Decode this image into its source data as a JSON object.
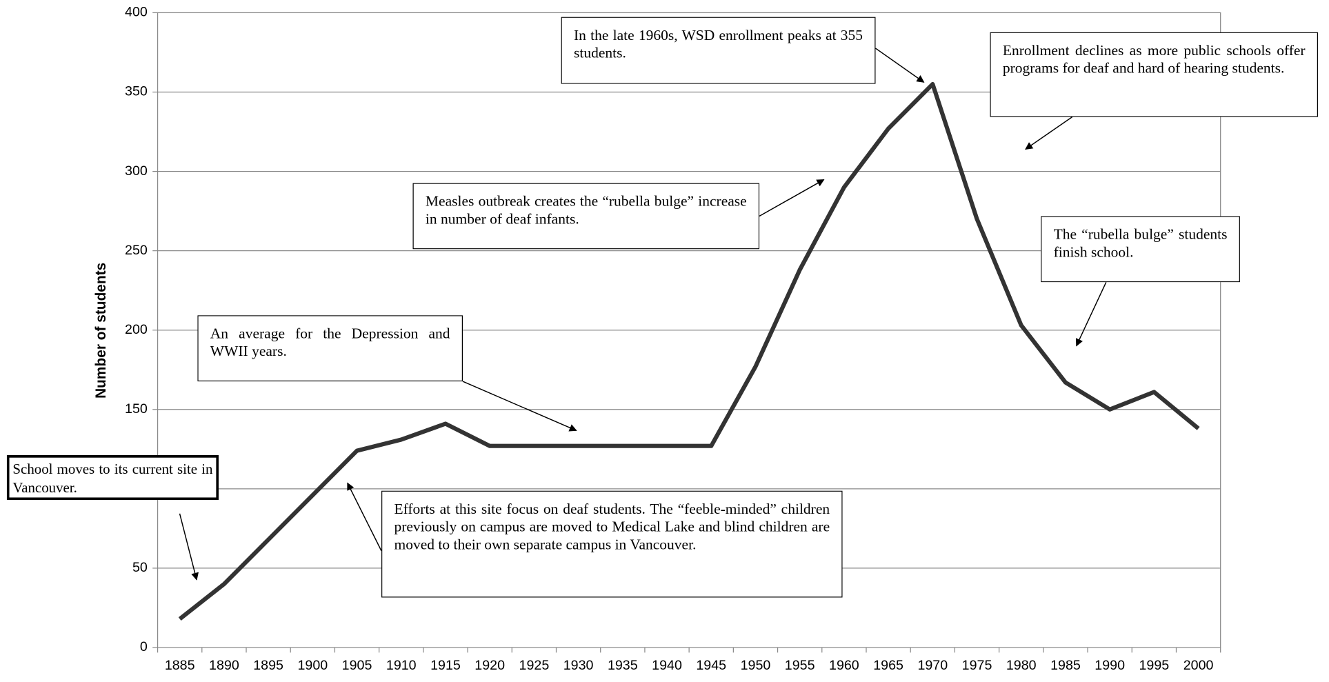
{
  "chart_data": {
    "type": "line",
    "y_label": "Number of students",
    "categories": [
      "1885",
      "1890",
      "1895",
      "1900",
      "1905",
      "1910",
      "1915",
      "1920",
      "1925",
      "1930",
      "1935",
      "1940",
      "1945",
      "1950",
      "1955",
      "1960",
      "1965",
      "1970",
      "1975",
      "1980",
      "1985",
      "1990",
      "1995",
      "2000"
    ],
    "values": [
      18,
      40,
      68,
      96,
      124,
      131,
      141,
      127,
      127,
      127,
      127,
      127,
      127,
      177,
      238,
      290,
      327,
      355,
      270,
      203,
      167,
      150,
      161,
      138
    ],
    "color": "#333333",
    "ylim": [
      0,
      400
    ],
    "yticks": [
      0,
      50,
      100,
      150,
      200,
      250,
      300,
      350,
      400
    ],
    "grid": true,
    "annotations": [
      "In the late 1960s, WSD enrollment peaks at 355 students.",
      "Enrollment declines as more public schools offer programs for deaf and hard of hearing students.",
      "Measles outbreak creates the “rubella bulge” increase in number of deaf infants.",
      "The “rubella bulge” students finish school.",
      "An average for the Depression and WWII years.",
      "School moves to its  current site in Vancouver.",
      "Efforts at this site focus on deaf students.  The “feeble-minded” children previously on campus are moved to Medical Lake and blind children are moved to their own separate campus in Vancouver."
    ]
  }
}
